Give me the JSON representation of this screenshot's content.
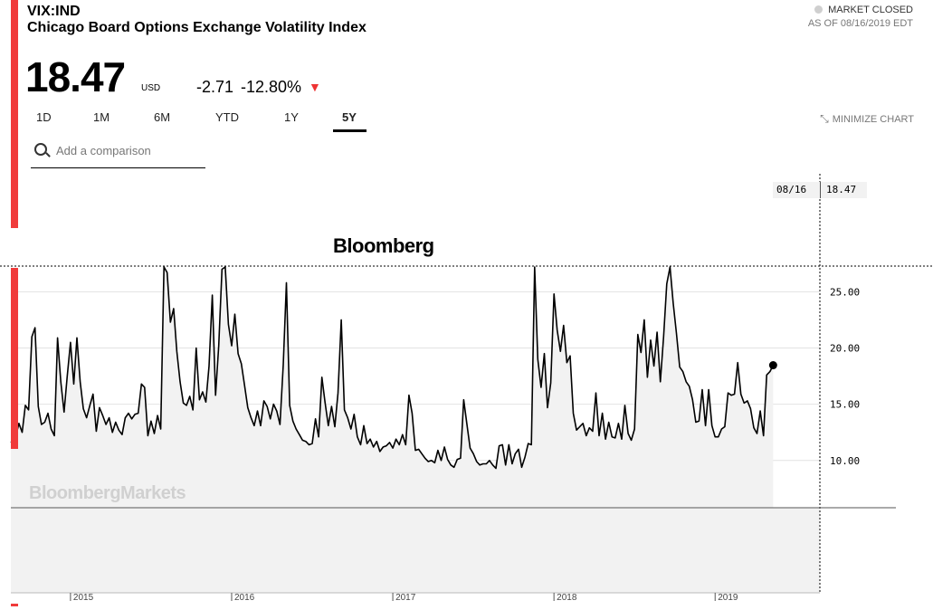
{
  "header": {
    "ticker": "VIX:IND",
    "name": "Chicago Board Options Exchange Volatility Index",
    "status": "MARKET CLOSED",
    "as_of": "AS OF 08/16/2019 EDT",
    "price": "18.47",
    "currency": "USD",
    "change": "-2.71",
    "change_pct": "-12.80%",
    "arrow": "▼"
  },
  "ranges": [
    "1D",
    "1M",
    "6M",
    "YTD",
    "1Y",
    "5Y"
  ],
  "active_range": "5Y",
  "minimize_label": "MINIMIZE CHART",
  "search": {
    "placeholder": "Add a comparison"
  },
  "tooltip": {
    "date": "08/16",
    "value": "18.47"
  },
  "bloomberg_label": "Bloomberg",
  "watermark": "BloombergMarkets",
  "colors": {
    "accent": "#f03b3b",
    "down": "#e33333",
    "area_fill": "#f2f2f2"
  },
  "icons": {
    "search": "search-icon",
    "minimize": "minimize-icon",
    "down": "down-arrow-icon"
  },
  "chart_data": {
    "type": "line",
    "x_ticks": [
      "2015",
      "2016",
      "2017",
      "2018",
      "2019"
    ],
    "y_ticks": [
      "10.00",
      "15.00",
      "20.00",
      "25.00"
    ],
    "ylim": [
      5.8,
      27.2
    ],
    "xlim": [
      2014.63,
      2019.65
    ],
    "grid": true,
    "series": [
      {
        "values": [
          [
            2014.63,
            11.6
          ],
          [
            2014.66,
            12.1
          ],
          [
            2014.68,
            13.3
          ],
          [
            2014.7,
            12.5
          ],
          [
            2014.72,
            14.9
          ],
          [
            2014.74,
            14.5
          ],
          [
            2014.76,
            21.0
          ],
          [
            2014.78,
            21.8
          ],
          [
            2014.8,
            14.8
          ],
          [
            2014.82,
            13.2
          ],
          [
            2014.84,
            13.4
          ],
          [
            2014.86,
            14.2
          ],
          [
            2014.88,
            12.8
          ],
          [
            2014.9,
            12.2
          ],
          [
            2014.92,
            20.9
          ],
          [
            2014.94,
            17.0
          ],
          [
            2014.96,
            14.3
          ],
          [
            2014.98,
            17.5
          ],
          [
            2015.0,
            20.5
          ],
          [
            2015.02,
            16.8
          ],
          [
            2015.04,
            20.9
          ],
          [
            2015.06,
            17.0
          ],
          [
            2015.08,
            14.6
          ],
          [
            2015.1,
            13.8
          ],
          [
            2015.12,
            14.9
          ],
          [
            2015.14,
            15.9
          ],
          [
            2015.16,
            12.6
          ],
          [
            2015.18,
            14.7
          ],
          [
            2015.2,
            14.0
          ],
          [
            2015.22,
            13.2
          ],
          [
            2015.24,
            13.8
          ],
          [
            2015.26,
            12.5
          ],
          [
            2015.28,
            13.4
          ],
          [
            2015.3,
            12.7
          ],
          [
            2015.32,
            12.3
          ],
          [
            2015.34,
            13.8
          ],
          [
            2015.36,
            14.2
          ],
          [
            2015.38,
            13.7
          ],
          [
            2015.4,
            14.1
          ],
          [
            2015.42,
            14.2
          ],
          [
            2015.44,
            16.8
          ],
          [
            2015.46,
            16.5
          ],
          [
            2015.48,
            12.2
          ],
          [
            2015.5,
            13.5
          ],
          [
            2015.52,
            12.4
          ],
          [
            2015.54,
            14.0
          ],
          [
            2015.56,
            12.8
          ],
          [
            2015.58,
            28.0
          ],
          [
            2015.6,
            26.7
          ],
          [
            2015.62,
            22.3
          ],
          [
            2015.64,
            23.5
          ],
          [
            2015.66,
            19.7
          ],
          [
            2015.68,
            17.0
          ],
          [
            2015.7,
            15.1
          ],
          [
            2015.72,
            14.9
          ],
          [
            2015.74,
            15.7
          ],
          [
            2015.76,
            14.5
          ],
          [
            2015.78,
            20.0
          ],
          [
            2015.8,
            15.4
          ],
          [
            2015.82,
            16.1
          ],
          [
            2015.84,
            15.2
          ],
          [
            2015.86,
            18.4
          ],
          [
            2015.88,
            24.7
          ],
          [
            2015.9,
            15.8
          ],
          [
            2015.92,
            20.2
          ],
          [
            2015.94,
            27.0
          ],
          [
            2015.96,
            27.6
          ],
          [
            2015.98,
            22.1
          ],
          [
            2016.0,
            20.2
          ],
          [
            2016.02,
            23.0
          ],
          [
            2016.04,
            19.5
          ],
          [
            2016.06,
            18.6
          ],
          [
            2016.08,
            16.7
          ],
          [
            2016.1,
            14.7
          ],
          [
            2016.12,
            13.8
          ],
          [
            2016.14,
            13.1
          ],
          [
            2016.16,
            14.4
          ],
          [
            2016.18,
            13.1
          ],
          [
            2016.2,
            15.3
          ],
          [
            2016.22,
            14.8
          ],
          [
            2016.24,
            13.7
          ],
          [
            2016.26,
            15.0
          ],
          [
            2016.28,
            14.4
          ],
          [
            2016.3,
            13.2
          ],
          [
            2016.32,
            18.5
          ],
          [
            2016.34,
            25.8
          ],
          [
            2016.36,
            14.9
          ],
          [
            2016.38,
            13.5
          ],
          [
            2016.4,
            12.8
          ],
          [
            2016.42,
            12.3
          ],
          [
            2016.44,
            11.8
          ],
          [
            2016.46,
            11.7
          ],
          [
            2016.48,
            11.4
          ],
          [
            2016.5,
            11.5
          ],
          [
            2016.52,
            13.7
          ],
          [
            2016.54,
            12.1
          ],
          [
            2016.56,
            17.4
          ],
          [
            2016.58,
            15.1
          ],
          [
            2016.6,
            13.1
          ],
          [
            2016.62,
            14.8
          ],
          [
            2016.64,
            13.0
          ],
          [
            2016.66,
            16.0
          ],
          [
            2016.68,
            22.5
          ],
          [
            2016.7,
            14.5
          ],
          [
            2016.72,
            13.8
          ],
          [
            2016.74,
            12.8
          ],
          [
            2016.76,
            14.1
          ],
          [
            2016.78,
            12.1
          ],
          [
            2016.8,
            11.4
          ],
          [
            2016.82,
            13.1
          ],
          [
            2016.84,
            11.5
          ],
          [
            2016.86,
            11.9
          ],
          [
            2016.88,
            11.2
          ],
          [
            2016.9,
            11.7
          ],
          [
            2016.92,
            10.8
          ],
          [
            2016.94,
            11.2
          ],
          [
            2016.96,
            11.3
          ],
          [
            2016.98,
            11.6
          ],
          [
            2017.0,
            11.1
          ],
          [
            2017.02,
            11.9
          ],
          [
            2017.04,
            11.4
          ],
          [
            2017.06,
            12.3
          ],
          [
            2017.08,
            11.4
          ],
          [
            2017.1,
            15.8
          ],
          [
            2017.12,
            14.2
          ],
          [
            2017.14,
            10.9
          ],
          [
            2017.16,
            11.0
          ],
          [
            2017.18,
            10.6
          ],
          [
            2017.2,
            10.2
          ],
          [
            2017.22,
            9.9
          ],
          [
            2017.24,
            10.0
          ],
          [
            2017.26,
            9.8
          ],
          [
            2017.28,
            10.9
          ],
          [
            2017.3,
            10.0
          ],
          [
            2017.32,
            11.2
          ],
          [
            2017.34,
            10.1
          ],
          [
            2017.36,
            9.6
          ],
          [
            2017.38,
            9.4
          ],
          [
            2017.4,
            10.1
          ],
          [
            2017.42,
            10.2
          ],
          [
            2017.44,
            15.4
          ],
          [
            2017.46,
            13.2
          ],
          [
            2017.48,
            11.1
          ],
          [
            2017.5,
            10.6
          ],
          [
            2017.52,
            9.9
          ],
          [
            2017.54,
            9.6
          ],
          [
            2017.56,
            9.7
          ],
          [
            2017.58,
            9.7
          ],
          [
            2017.6,
            10.0
          ],
          [
            2017.62,
            9.6
          ],
          [
            2017.64,
            9.3
          ],
          [
            2017.66,
            11.3
          ],
          [
            2017.68,
            11.4
          ],
          [
            2017.7,
            9.6
          ],
          [
            2017.72,
            11.4
          ],
          [
            2017.74,
            9.7
          ],
          [
            2017.76,
            10.6
          ],
          [
            2017.78,
            11.0
          ],
          [
            2017.8,
            9.4
          ],
          [
            2017.82,
            10.3
          ],
          [
            2017.84,
            11.5
          ],
          [
            2017.86,
            11.4
          ],
          [
            2017.88,
            27.3
          ],
          [
            2017.9,
            19.0
          ],
          [
            2017.92,
            16.5
          ],
          [
            2017.94,
            19.5
          ],
          [
            2017.96,
            14.7
          ],
          [
            2017.98,
            16.9
          ],
          [
            2018.0,
            24.8
          ],
          [
            2018.02,
            21.6
          ],
          [
            2018.04,
            19.7
          ],
          [
            2018.06,
            22.0
          ],
          [
            2018.08,
            18.7
          ],
          [
            2018.1,
            19.3
          ],
          [
            2018.12,
            14.2
          ],
          [
            2018.14,
            12.7
          ],
          [
            2018.16,
            13.0
          ],
          [
            2018.18,
            13.3
          ],
          [
            2018.2,
            12.2
          ],
          [
            2018.22,
            12.9
          ],
          [
            2018.24,
            12.6
          ],
          [
            2018.26,
            16.0
          ],
          [
            2018.28,
            12.2
          ],
          [
            2018.3,
            14.2
          ],
          [
            2018.32,
            11.9
          ],
          [
            2018.34,
            13.4
          ],
          [
            2018.36,
            12.1
          ],
          [
            2018.38,
            12.0
          ],
          [
            2018.4,
            13.3
          ],
          [
            2018.42,
            11.9
          ],
          [
            2018.44,
            14.9
          ],
          [
            2018.46,
            12.4
          ],
          [
            2018.48,
            11.8
          ],
          [
            2018.5,
            12.8
          ],
          [
            2018.52,
            21.2
          ],
          [
            2018.54,
            19.6
          ],
          [
            2018.56,
            22.5
          ],
          [
            2018.58,
            17.4
          ],
          [
            2018.6,
            20.7
          ],
          [
            2018.62,
            18.4
          ],
          [
            2018.64,
            21.4
          ],
          [
            2018.66,
            17.0
          ],
          [
            2018.68,
            21.0
          ],
          [
            2018.7,
            25.7
          ],
          [
            2018.72,
            28.4
          ],
          [
            2018.74,
            24.0
          ],
          [
            2018.76,
            21.3
          ],
          [
            2018.78,
            18.3
          ],
          [
            2018.8,
            17.9
          ],
          [
            2018.82,
            17.0
          ],
          [
            2018.84,
            16.6
          ],
          [
            2018.86,
            15.4
          ],
          [
            2018.88,
            13.4
          ],
          [
            2018.9,
            13.5
          ],
          [
            2018.92,
            16.3
          ],
          [
            2018.94,
            13.1
          ],
          [
            2018.96,
            16.3
          ],
          [
            2018.98,
            13.1
          ],
          [
            2019.0,
            12.1
          ],
          [
            2019.02,
            12.1
          ],
          [
            2019.04,
            12.8
          ],
          [
            2019.06,
            13.0
          ],
          [
            2019.08,
            16.0
          ],
          [
            2019.1,
            15.8
          ],
          [
            2019.12,
            15.9
          ],
          [
            2019.14,
            18.7
          ],
          [
            2019.16,
            15.9
          ],
          [
            2019.18,
            15.1
          ],
          [
            2019.2,
            15.3
          ],
          [
            2019.22,
            14.6
          ],
          [
            2019.24,
            12.9
          ],
          [
            2019.26,
            12.4
          ],
          [
            2019.28,
            14.4
          ],
          [
            2019.3,
            12.2
          ],
          [
            2019.32,
            17.6
          ],
          [
            2019.34,
            17.9
          ],
          [
            2019.36,
            18.47
          ]
        ]
      }
    ],
    "last_value": 18.47
  }
}
